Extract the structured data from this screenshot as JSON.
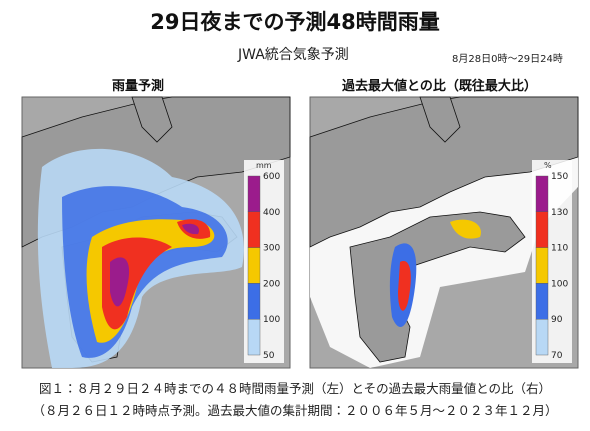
{
  "header": {
    "title": "29日夜までの予測48時間雨量",
    "subtitle": "JWA統合気象予測",
    "date": "8月28日0時～29日24時"
  },
  "panels": [
    {
      "label": "雨量予測",
      "legend": {
        "unit": "mm",
        "ticks": [
          600,
          400,
          300,
          200,
          100,
          50
        ],
        "colors": [
          "#9b1c8c",
          "#f03020",
          "#f5c800",
          "#3c6ee6",
          "#b8d8f5"
        ]
      }
    },
    {
      "label": "過去最大値との比（既往最大比）",
      "legend": {
        "unit": "%",
        "ticks": [
          150,
          130,
          110,
          100,
          90,
          70
        ],
        "colors": [
          "#9b1c8c",
          "#f03020",
          "#f5c800",
          "#3c6ee6",
          "#b8d8f5"
        ]
      }
    }
  ],
  "caption": [
    "図１：８月２９日２４時までの４８時間雨量予測（左）とその過去最大雨量値との比（右）",
    "（８月２６日１２時時点予測。過去最大値の集計期間：２００６年５月～２０２３年１２月）"
  ]
}
